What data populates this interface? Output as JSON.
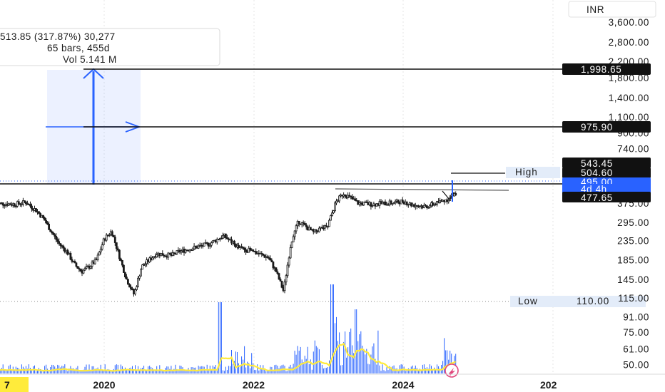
{
  "currency": "INR",
  "measure_info": {
    "line1": "513.85 (317.87%) 30,277",
    "line2": "65 bars, 455d",
    "line3": "Vol 5.141 M"
  },
  "price_tags": {
    "target2": "1,998.65",
    "target1": "975.90",
    "t543": "543.45",
    "t504": "504.60",
    "last": "495.00",
    "countdown": "4d 4h",
    "t477": "477.65"
  },
  "high_label": "High",
  "low_label": "Low",
  "low_value": "110.00",
  "x_left_partial": "7",
  "x_right_partial": "202",
  "colors": {
    "candle": "#1a1a1a",
    "volume": "#2962ff",
    "volume_ma": "#ffeb3b",
    "measure": "#2962ff",
    "last_price": "#2962ff"
  },
  "chart_data": {
    "type": "candlestick",
    "y_scale": "log",
    "ylim": [
      47,
      4300
    ],
    "y_ticks": [
      "3,600.00",
      "2,800.00",
      "2,200.00",
      "1,800.00",
      "1,400.00",
      "1,100.00",
      "900.00",
      "740.00",
      "375.00",
      "295.00",
      "235.00",
      "185.00",
      "145.00",
      "115.00",
      "91.00",
      "75.00",
      "61.00",
      "50.00"
    ],
    "y_tick_values": [
      3600,
      2800,
      2200,
      1800,
      1400,
      1100,
      900,
      740,
      375,
      295,
      235,
      185,
      145,
      115,
      91,
      75,
      61,
      50
    ],
    "x_ticks": [
      "2020",
      "2022",
      "2024"
    ],
    "x_tick_years": [
      2020.0,
      2022.0,
      2024.0
    ],
    "xlim": [
      2018.55,
      2026.2
    ],
    "weekly_close": [
      {
        "t": 2018.55,
        "c": 375
      },
      {
        "t": 2018.8,
        "c": 370
      },
      {
        "t": 2018.95,
        "c": 380
      },
      {
        "t": 2019.1,
        "c": 340
      },
      {
        "t": 2019.2,
        "c": 305
      },
      {
        "t": 2019.3,
        "c": 260
      },
      {
        "t": 2019.4,
        "c": 225
      },
      {
        "t": 2019.5,
        "c": 205
      },
      {
        "t": 2019.6,
        "c": 175
      },
      {
        "t": 2019.7,
        "c": 160
      },
      {
        "t": 2019.8,
        "c": 170
      },
      {
        "t": 2019.9,
        "c": 185
      },
      {
        "t": 2020.0,
        "c": 240
      },
      {
        "t": 2020.1,
        "c": 265
      },
      {
        "t": 2020.2,
        "c": 195
      },
      {
        "t": 2020.3,
        "c": 145
      },
      {
        "t": 2020.4,
        "c": 120
      },
      {
        "t": 2020.5,
        "c": 170
      },
      {
        "t": 2020.7,
        "c": 200
      },
      {
        "t": 2020.9,
        "c": 195
      },
      {
        "t": 2021.0,
        "c": 205
      },
      {
        "t": 2021.2,
        "c": 215
      },
      {
        "t": 2021.4,
        "c": 225
      },
      {
        "t": 2021.6,
        "c": 250
      },
      {
        "t": 2021.8,
        "c": 215
      },
      {
        "t": 2022.0,
        "c": 205
      },
      {
        "t": 2022.2,
        "c": 190
      },
      {
        "t": 2022.3,
        "c": 160
      },
      {
        "t": 2022.4,
        "c": 125
      },
      {
        "t": 2022.5,
        "c": 230
      },
      {
        "t": 2022.6,
        "c": 300
      },
      {
        "t": 2022.8,
        "c": 260
      },
      {
        "t": 2023.0,
        "c": 290
      },
      {
        "t": 2023.1,
        "c": 380
      },
      {
        "t": 2023.2,
        "c": 425
      },
      {
        "t": 2023.4,
        "c": 375
      },
      {
        "t": 2023.6,
        "c": 370
      },
      {
        "t": 2023.8,
        "c": 375
      },
      {
        "t": 2024.0,
        "c": 385
      },
      {
        "t": 2024.1,
        "c": 370
      },
      {
        "t": 2024.3,
        "c": 360
      },
      {
        "t": 2024.45,
        "c": 375
      },
      {
        "t": 2024.6,
        "c": 395
      },
      {
        "t": 2024.7,
        "c": 420
      },
      {
        "t": 2024.76,
        "c": 495
      }
    ],
    "annotations": {
      "measure_from": 110,
      "measure_to": 1998.65,
      "target_1": 975.9,
      "resistance": 477.65,
      "high": 504.6,
      "low": 110.0
    }
  }
}
